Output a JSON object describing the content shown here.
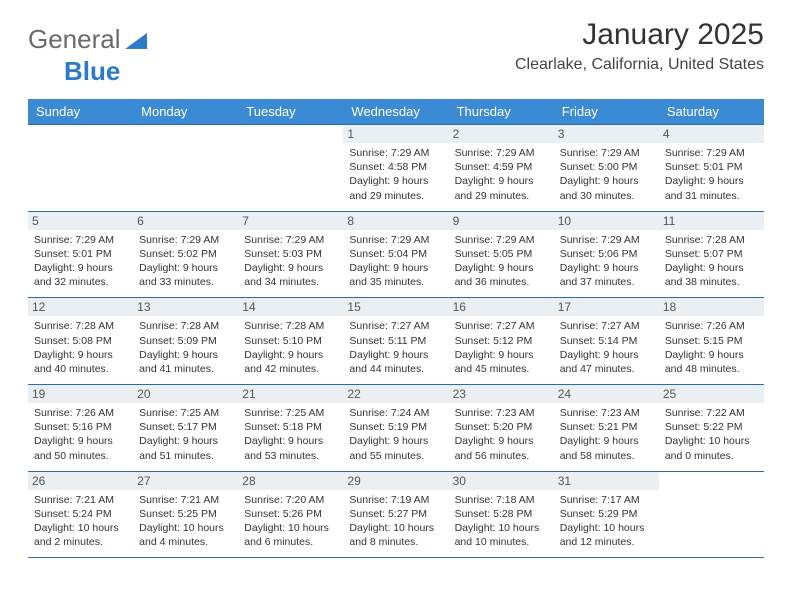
{
  "brand": {
    "general": "General",
    "blue": "Blue"
  },
  "title": "January 2025",
  "location": "Clearlake, California, United States",
  "colors": {
    "header_bg": "#3b8bd4",
    "header_text": "#ffffff",
    "rule": "#2c6aa8",
    "daynum_bg": "#eaeff3",
    "text": "#333333"
  },
  "day_names": [
    "Sunday",
    "Monday",
    "Tuesday",
    "Wednesday",
    "Thursday",
    "Friday",
    "Saturday"
  ],
  "weeks": [
    [
      null,
      null,
      null,
      {
        "n": "1",
        "sr": "7:29 AM",
        "ss": "4:58 PM",
        "dl": "9 hours and 29 minutes."
      },
      {
        "n": "2",
        "sr": "7:29 AM",
        "ss": "4:59 PM",
        "dl": "9 hours and 29 minutes."
      },
      {
        "n": "3",
        "sr": "7:29 AM",
        "ss": "5:00 PM",
        "dl": "9 hours and 30 minutes."
      },
      {
        "n": "4",
        "sr": "7:29 AM",
        "ss": "5:01 PM",
        "dl": "9 hours and 31 minutes."
      }
    ],
    [
      {
        "n": "5",
        "sr": "7:29 AM",
        "ss": "5:01 PM",
        "dl": "9 hours and 32 minutes."
      },
      {
        "n": "6",
        "sr": "7:29 AM",
        "ss": "5:02 PM",
        "dl": "9 hours and 33 minutes."
      },
      {
        "n": "7",
        "sr": "7:29 AM",
        "ss": "5:03 PM",
        "dl": "9 hours and 34 minutes."
      },
      {
        "n": "8",
        "sr": "7:29 AM",
        "ss": "5:04 PM",
        "dl": "9 hours and 35 minutes."
      },
      {
        "n": "9",
        "sr": "7:29 AM",
        "ss": "5:05 PM",
        "dl": "9 hours and 36 minutes."
      },
      {
        "n": "10",
        "sr": "7:29 AM",
        "ss": "5:06 PM",
        "dl": "9 hours and 37 minutes."
      },
      {
        "n": "11",
        "sr": "7:28 AM",
        "ss": "5:07 PM",
        "dl": "9 hours and 38 minutes."
      }
    ],
    [
      {
        "n": "12",
        "sr": "7:28 AM",
        "ss": "5:08 PM",
        "dl": "9 hours and 40 minutes."
      },
      {
        "n": "13",
        "sr": "7:28 AM",
        "ss": "5:09 PM",
        "dl": "9 hours and 41 minutes."
      },
      {
        "n": "14",
        "sr": "7:28 AM",
        "ss": "5:10 PM",
        "dl": "9 hours and 42 minutes."
      },
      {
        "n": "15",
        "sr": "7:27 AM",
        "ss": "5:11 PM",
        "dl": "9 hours and 44 minutes."
      },
      {
        "n": "16",
        "sr": "7:27 AM",
        "ss": "5:12 PM",
        "dl": "9 hours and 45 minutes."
      },
      {
        "n": "17",
        "sr": "7:27 AM",
        "ss": "5:14 PM",
        "dl": "9 hours and 47 minutes."
      },
      {
        "n": "18",
        "sr": "7:26 AM",
        "ss": "5:15 PM",
        "dl": "9 hours and 48 minutes."
      }
    ],
    [
      {
        "n": "19",
        "sr": "7:26 AM",
        "ss": "5:16 PM",
        "dl": "9 hours and 50 minutes."
      },
      {
        "n": "20",
        "sr": "7:25 AM",
        "ss": "5:17 PM",
        "dl": "9 hours and 51 minutes."
      },
      {
        "n": "21",
        "sr": "7:25 AM",
        "ss": "5:18 PM",
        "dl": "9 hours and 53 minutes."
      },
      {
        "n": "22",
        "sr": "7:24 AM",
        "ss": "5:19 PM",
        "dl": "9 hours and 55 minutes."
      },
      {
        "n": "23",
        "sr": "7:23 AM",
        "ss": "5:20 PM",
        "dl": "9 hours and 56 minutes."
      },
      {
        "n": "24",
        "sr": "7:23 AM",
        "ss": "5:21 PM",
        "dl": "9 hours and 58 minutes."
      },
      {
        "n": "25",
        "sr": "7:22 AM",
        "ss": "5:22 PM",
        "dl": "10 hours and 0 minutes."
      }
    ],
    [
      {
        "n": "26",
        "sr": "7:21 AM",
        "ss": "5:24 PM",
        "dl": "10 hours and 2 minutes."
      },
      {
        "n": "27",
        "sr": "7:21 AM",
        "ss": "5:25 PM",
        "dl": "10 hours and 4 minutes."
      },
      {
        "n": "28",
        "sr": "7:20 AM",
        "ss": "5:26 PM",
        "dl": "10 hours and 6 minutes."
      },
      {
        "n": "29",
        "sr": "7:19 AM",
        "ss": "5:27 PM",
        "dl": "10 hours and 8 minutes."
      },
      {
        "n": "30",
        "sr": "7:18 AM",
        "ss": "5:28 PM",
        "dl": "10 hours and 10 minutes."
      },
      {
        "n": "31",
        "sr": "7:17 AM",
        "ss": "5:29 PM",
        "dl": "10 hours and 12 minutes."
      },
      null
    ]
  ],
  "labels": {
    "sunrise": "Sunrise:",
    "sunset": "Sunset:",
    "daylight": "Daylight:"
  }
}
